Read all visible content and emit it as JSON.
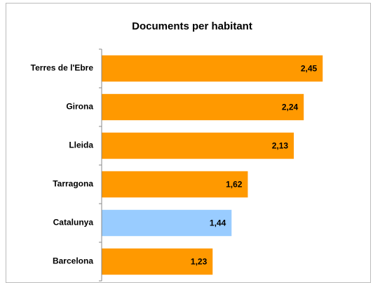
{
  "chart_data": {
    "type": "bar",
    "orientation": "horizontal",
    "title": "Documents per habitant",
    "categories": [
      "Terres de l'Ebre",
      "Girona",
      "Lleida",
      "Tarragona",
      "Catalunya",
      "Barcelona"
    ],
    "values": [
      2.45,
      2.24,
      2.13,
      1.62,
      1.44,
      1.23
    ],
    "value_labels": [
      "2,45",
      "2,24",
      "2,13",
      "1,62",
      "1,44",
      "1,23"
    ],
    "colors": [
      "#ff9900",
      "#ff9900",
      "#ff9900",
      "#ff9900",
      "#99ccff",
      "#ff9900"
    ],
    "xlim": [
      0,
      3
    ]
  }
}
